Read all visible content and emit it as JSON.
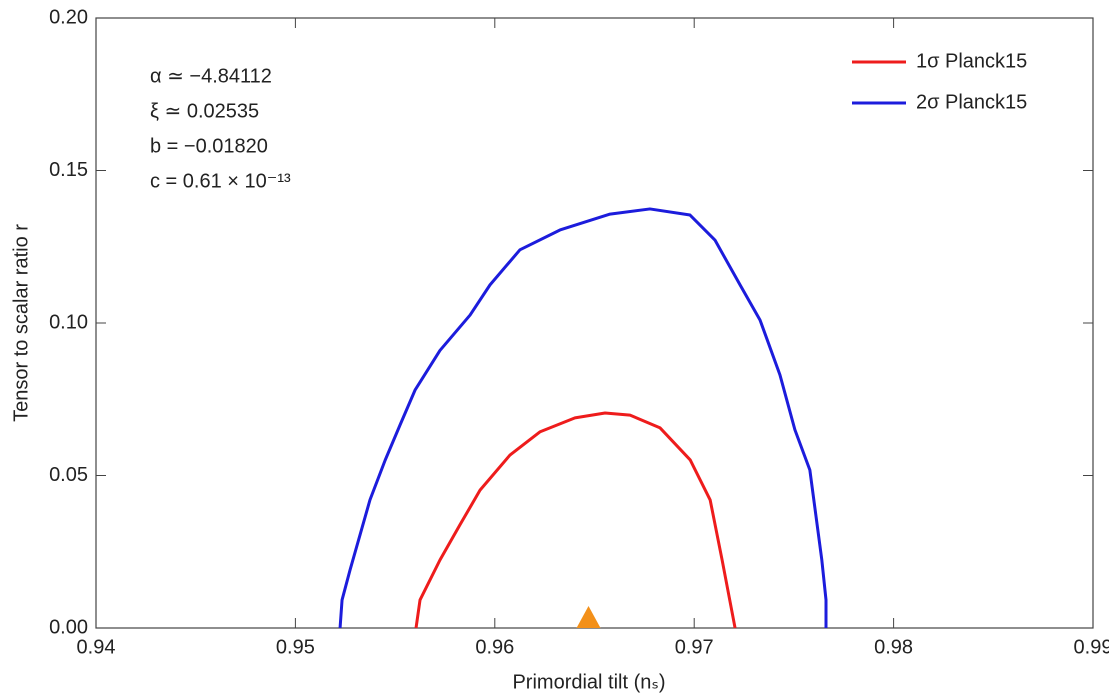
{
  "chart_data": {
    "type": "line",
    "xlabel": "Primordial tilt (nₛ)",
    "ylabel": "Tensor to scalar ratio r",
    "xlim": [
      0.94,
      0.99
    ],
    "xticks": [
      0.94,
      0.95,
      0.96,
      0.97,
      0.98,
      0.99
    ],
    "ylim": [
      0,
      0.2
    ],
    "yticks": [
      {
        "value": 0,
        "label": "0.00"
      },
      0.05,
      {
        "value": 0.1,
        "label": "0.10"
      },
      0.15,
      {
        "value": 0.2,
        "label": "0.20"
      }
    ],
    "legend": "top-right",
    "annotations": [
      "α ≃ −4.84112",
      "ξ ≃ 0.02535",
      "b = −0.01820",
      "c = 0.61 × 10⁻¹³"
    ],
    "series": [
      {
        "name": "1σ Planck15",
        "color": "#ee1c1c",
        "x": [
          0.95605,
          0.95625,
          0.95725,
          0.95825,
          0.95926,
          0.96076,
          0.96226,
          0.96402,
          0.96553,
          0.96678,
          0.96829,
          0.9698,
          0.9708,
          0.9714,
          0.97205
        ],
        "y": [
          0,
          0.0092,
          0.0223,
          0.0338,
          0.0452,
          0.0567,
          0.0643,
          0.0689,
          0.0705,
          0.0698,
          0.0656,
          0.0551,
          0.042,
          0.0223,
          0
        ]
      },
      {
        "name": "2σ Planck15",
        "color": "#1c1cdc",
        "x": [
          0.95224,
          0.95234,
          0.95274,
          0.95374,
          0.9545,
          0.95525,
          0.956,
          0.95725,
          0.95876,
          0.95976,
          0.96126,
          0.96327,
          0.96578,
          0.96778,
          0.96979,
          0.97104,
          0.9723,
          0.9733,
          0.9743,
          0.97505,
          0.9758,
          0.9764,
          0.97661,
          0.97661
        ],
        "y": [
          0,
          0.0092,
          0.019,
          0.042,
          0.055,
          0.0666,
          0.078,
          0.091,
          0.1026,
          0.1125,
          0.124,
          0.1305,
          0.1357,
          0.1374,
          0.1354,
          0.1272,
          0.1125,
          0.101,
          0.083,
          0.065,
          0.0518,
          0.0223,
          0.0092,
          0
        ]
      }
    ],
    "markers": [
      {
        "x": 0.9647,
        "y": 0,
        "color": "#f39019"
      }
    ]
  }
}
